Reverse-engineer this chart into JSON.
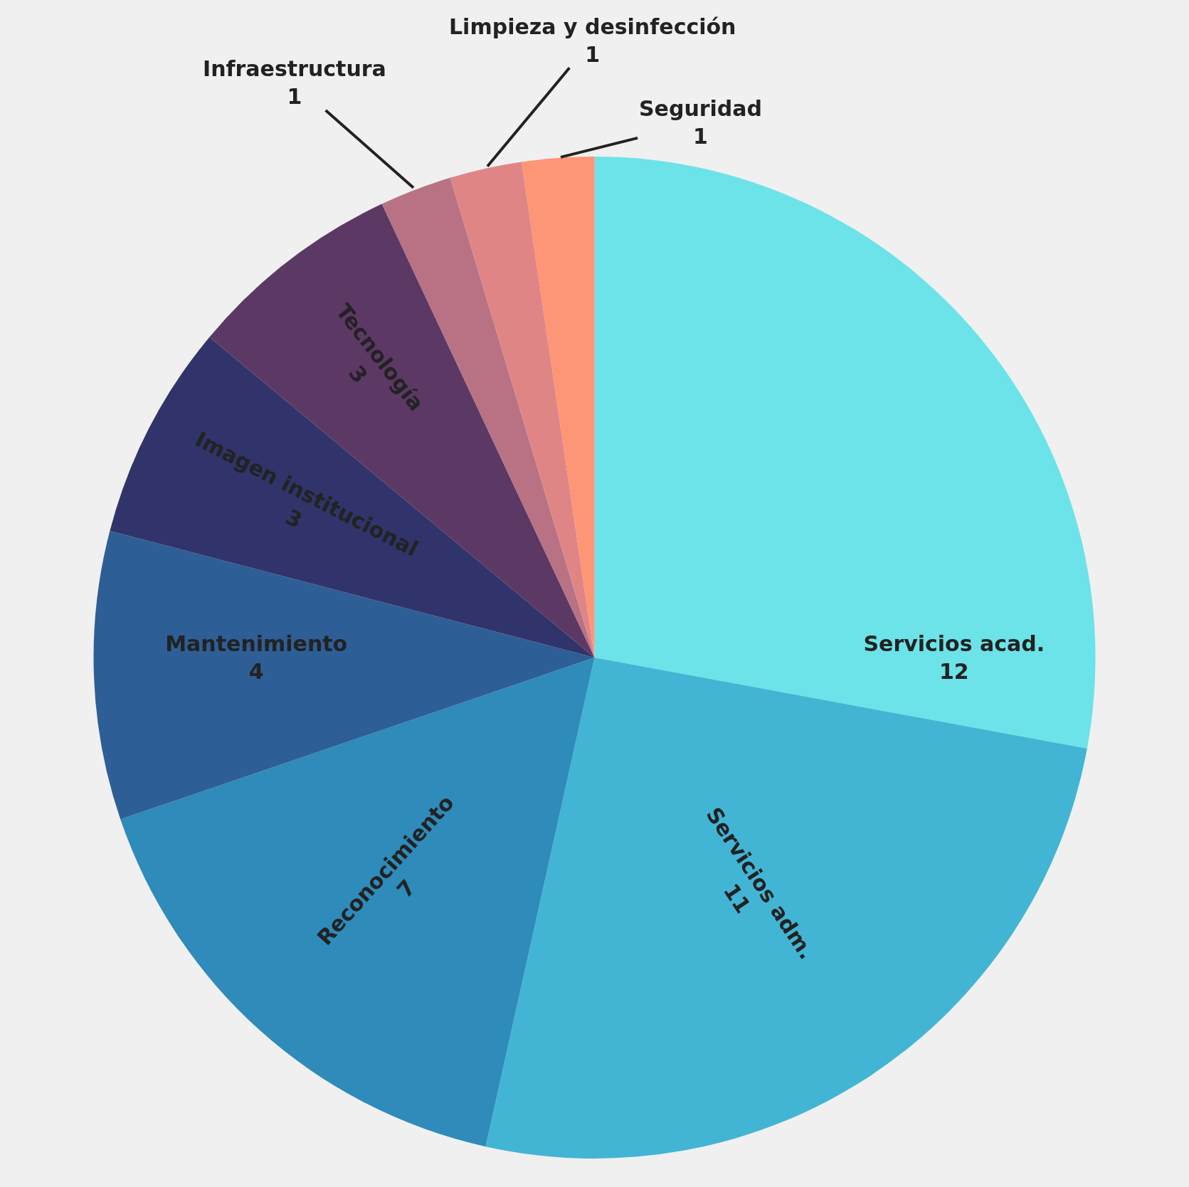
{
  "chart_data": {
    "type": "pie",
    "categories": [
      "Servicios acad.",
      "Servicios adm.",
      "Reconocimiento",
      "Mantenimiento",
      "Imagen institucional",
      "Tecnología",
      "Infraestructura",
      "Limpieza y desinfección",
      "Seguridad"
    ],
    "values": [
      12,
      11,
      7,
      4,
      3,
      3,
      1,
      1,
      1
    ],
    "colors": [
      "#6ce3e8",
      "#42b5d5",
      "#2e8bba",
      "#2e5e96",
      "#30346a",
      "#5c3865",
      "#b87284",
      "#e08585",
      "#fd9577"
    ],
    "data_labels": true,
    "legend": false
  }
}
